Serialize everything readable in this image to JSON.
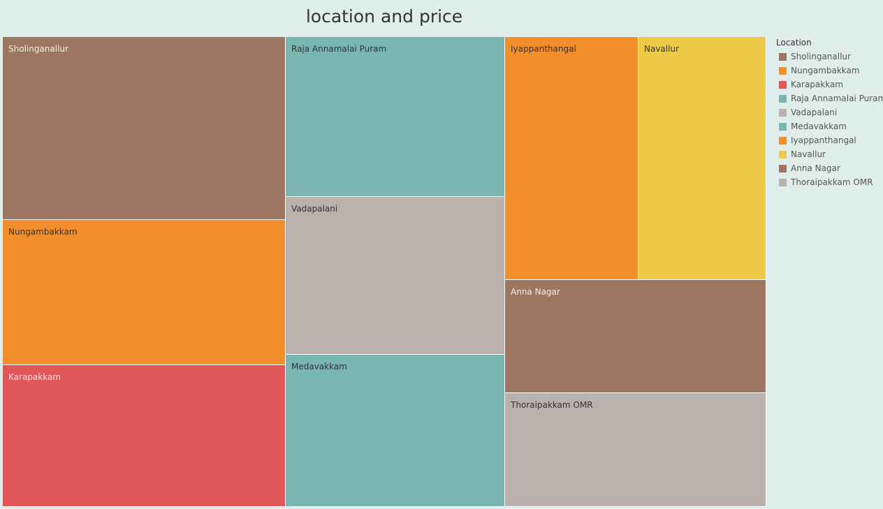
{
  "chart_data": {
    "type": "treemap",
    "title": "location and price",
    "legend_title": "Location",
    "legend_position": "right",
    "items": [
      {
        "name": "Sholinganallur",
        "color": "#9c7660",
        "text_color": "#f4efe9"
      },
      {
        "name": "Nungambakkam",
        "color": "#f28e2b",
        "text_color": "#333333"
      },
      {
        "name": "Karapakkam",
        "color": "#e15759",
        "text_color": "#fbe6e6"
      },
      {
        "name": "Raja Annamalai Puram",
        "color": "#7ab6b1",
        "text_color": "#333333"
      },
      {
        "name": "Vadapalani",
        "color": "#bab0ac",
        "text_color": "#333333"
      },
      {
        "name": "Medavakkam",
        "color": "#7ab6b1",
        "text_color": "#333333"
      },
      {
        "name": "Iyappanthangal",
        "color": "#f28e2b",
        "text_color": "#333333"
      },
      {
        "name": "Navallur",
        "color": "#edc948",
        "text_color": "#333333"
      },
      {
        "name": "Anna Nagar",
        "color": "#9c7660",
        "text_color": "#f4efe9"
      },
      {
        "name": "Thoraipakkam OMR",
        "color": "#bab0ac",
        "text_color": "#333333"
      }
    ]
  }
}
